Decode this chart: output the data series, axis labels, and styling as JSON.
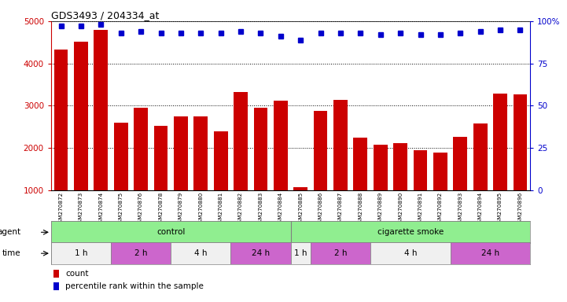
{
  "title": "GDS3493 / 204334_at",
  "samples": [
    "GSM270872",
    "GSM270873",
    "GSM270874",
    "GSM270875",
    "GSM270876",
    "GSM270878",
    "GSM270879",
    "GSM270880",
    "GSM270881",
    "GSM270882",
    "GSM270883",
    "GSM270884",
    "GSM270885",
    "GSM270886",
    "GSM270887",
    "GSM270888",
    "GSM270889",
    "GSM270890",
    "GSM270891",
    "GSM270892",
    "GSM270893",
    "GSM270894",
    "GSM270895",
    "GSM270896"
  ],
  "counts": [
    4330,
    4510,
    4800,
    2600,
    2950,
    2530,
    2750,
    2750,
    2400,
    3330,
    2960,
    3110,
    1070,
    2880,
    3130,
    2240,
    2080,
    2110,
    1950,
    1890,
    2270,
    2580,
    3290,
    3270
  ],
  "percentile": [
    97,
    97,
    98,
    93,
    94,
    93,
    93,
    93,
    93,
    94,
    93,
    91,
    89,
    93,
    93,
    93,
    92,
    93,
    92,
    92,
    93,
    94,
    95,
    95
  ],
  "bar_color": "#cc0000",
  "dot_color": "#0000cc",
  "ylim_left": [
    1000,
    5000
  ],
  "ylim_right": [
    0,
    100
  ],
  "yticks_left": [
    1000,
    2000,
    3000,
    4000,
    5000
  ],
  "yticks_right": [
    0,
    25,
    50,
    75,
    100
  ],
  "agent_groups": [
    {
      "label": "control",
      "start": 0,
      "end": 12,
      "color": "#90EE90"
    },
    {
      "label": "cigarette smoke",
      "start": 12,
      "end": 24,
      "color": "#90EE90"
    }
  ],
  "time_groups": [
    {
      "label": "1 h",
      "start": 0,
      "end": 3,
      "color": "#f0f0f0"
    },
    {
      "label": "2 h",
      "start": 3,
      "end": 6,
      "color": "#CC66CC"
    },
    {
      "label": "4 h",
      "start": 6,
      "end": 9,
      "color": "#f0f0f0"
    },
    {
      "label": "24 h",
      "start": 9,
      "end": 12,
      "color": "#CC66CC"
    },
    {
      "label": "1 h",
      "start": 12,
      "end": 13,
      "color": "#f0f0f0"
    },
    {
      "label": "2 h",
      "start": 13,
      "end": 16,
      "color": "#CC66CC"
    },
    {
      "label": "4 h",
      "start": 16,
      "end": 20,
      "color": "#f0f0f0"
    },
    {
      "label": "24 h",
      "start": 20,
      "end": 24,
      "color": "#CC66CC"
    }
  ],
  "bg_color": "#ffffff",
  "plot_bg_color": "#ffffff",
  "tick_color_left": "#cc0000",
  "tick_color_right": "#0000cc",
  "legend_count_color": "#cc0000",
  "legend_dot_color": "#0000cc"
}
